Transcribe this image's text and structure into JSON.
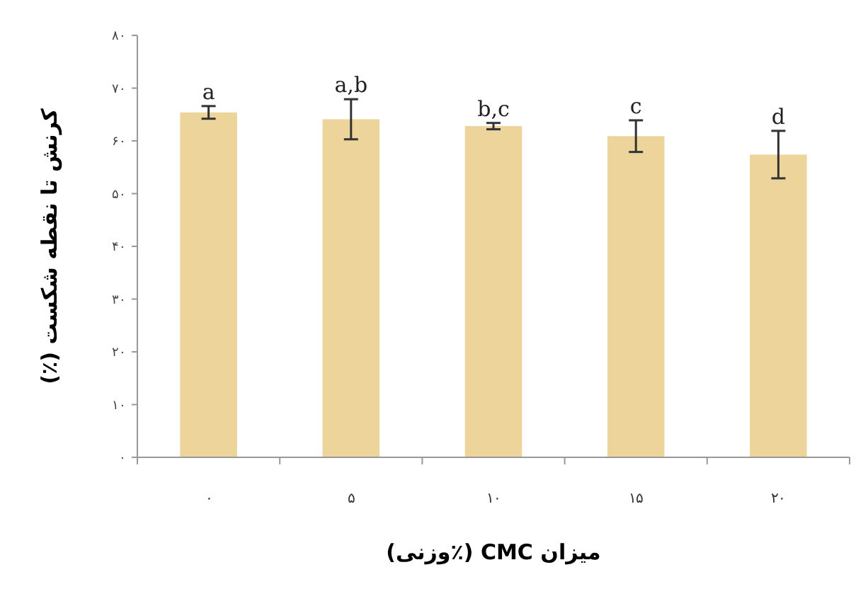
{
  "chart_data": {
    "type": "bar",
    "xlabel": "میزان CMC (٪وزنی)",
    "ylabel": "کرنش تا نقطه شکست (٪)",
    "categories": [
      "۰",
      "۵",
      "۱۰",
      "۱۵",
      "۲۰"
    ],
    "values": [
      65.4,
      64.1,
      62.8,
      60.9,
      57.4
    ],
    "errors": [
      1.2,
      3.8,
      0.6,
      3,
      4.5
    ],
    "color": "#ecd49a",
    "ylim": [
      0,
      80
    ],
    "yticks": [
      {
        "value": 0,
        "label": "۰"
      },
      {
        "value": 10,
        "label": "۱۰"
      },
      {
        "value": 20,
        "label": "۲۰"
      },
      {
        "value": 30,
        "label": "۳۰"
      },
      {
        "value": 40,
        "label": "۴۰"
      },
      {
        "value": 50,
        "label": "۵۰"
      },
      {
        "value": 60,
        "label": "۶۰"
      },
      {
        "value": 70,
        "label": "۷۰"
      },
      {
        "value": 80,
        "label": "۸۰"
      }
    ],
    "annotations": [
      {
        "text": "a",
        "x": "۰",
        "y": 66.6
      },
      {
        "text": "a,b",
        "x": "۵",
        "y": 67.9
      },
      {
        "text": "b,c",
        "x": "۱۰",
        "y": 63.4
      },
      {
        "text": "c",
        "x": "۱۵",
        "y": 63.9
      },
      {
        "text": "d",
        "x": "۲۰",
        "y": 61.9
      }
    ],
    "grid": false
  }
}
